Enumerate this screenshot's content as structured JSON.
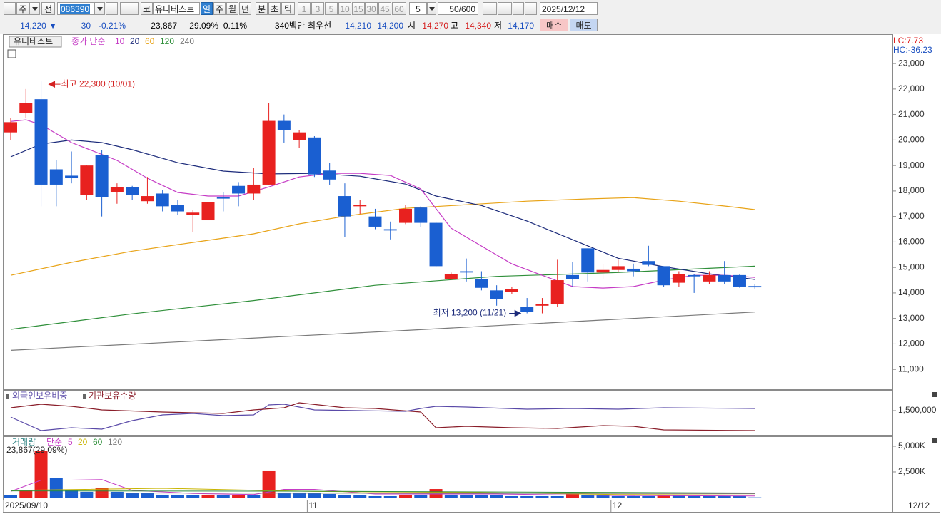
{
  "toolbar": {
    "type_select": "주",
    "all": "전",
    "code": "086390",
    "market": "코",
    "name": "유니테스트",
    "periods": [
      "일",
      "주",
      "월",
      "년",
      "분",
      "초",
      "틱"
    ],
    "intervals": [
      "1",
      "3",
      "5",
      "10",
      "15",
      "30",
      "45",
      "60"
    ],
    "interval_value": "5",
    "count": "50/600",
    "date": "2025/12/12"
  },
  "quote": {
    "price": "14,220 ▼",
    "change": "30",
    "change_rate": "-0.21%",
    "volume": "23,867",
    "volume_ratio": "29.09%",
    "turnover": "0.11%",
    "amount": "340백만",
    "best_label": "최우선",
    "ask": "14,210",
    "bid": "14,200",
    "open_label": "시",
    "open": "14,270",
    "high_label": "고",
    "high": "14,340",
    "low_label": "저",
    "low": "14,170",
    "buy": "매수",
    "sell": "매도"
  },
  "x_axis": {
    "ticks": [
      {
        "value": 0,
        "label": "2025/09/10"
      },
      {
        "value": 20,
        "label": "11"
      },
      {
        "value": 40,
        "label": "12"
      }
    ],
    "end_label": "12/12"
  },
  "chart_data": [
    {
      "type": "candlestick",
      "name": "유니테스트",
      "ma_label": "종가 단순",
      "up_color": "#e8211f",
      "down_color": "#1a5fd1",
      "corner": [
        {
          "text": "LC:7.73",
          "color": "#e02020"
        },
        {
          "text": "HC:-36.23",
          "color": "#1a4fc0"
        }
      ],
      "open": [
        20300,
        21050,
        21600,
        18850,
        18600,
        17850,
        19400,
        17950,
        18150,
        17600,
        17900,
        17450,
        17050,
        16850,
        17750,
        18200,
        17900,
        18250,
        20750,
        20000,
        20100,
        18800,
        17800,
        17400,
        17000,
        16500,
        16750,
        17350,
        16750,
        14550,
        14850,
        14550,
        14100,
        14050,
        13450,
        13500,
        13550,
        14700,
        15750,
        14800,
        14900,
        14950,
        15250,
        15050,
        14400,
        14700,
        14450,
        14700,
        14700,
        14270
      ],
      "high": [
        20850,
        22000,
        22300,
        19200,
        19550,
        19000,
        19600,
        18300,
        18200,
        18550,
        18050,
        17650,
        17250,
        17650,
        17950,
        18350,
        18900,
        21450,
        21000,
        20400,
        20150,
        19100,
        18300,
        17650,
        17300,
        16800,
        17450,
        17400,
        16800,
        14800,
        15350,
        14850,
        14300,
        14250,
        13800,
        13800,
        15300,
        15200,
        15750,
        15150,
        15300,
        15150,
        15850,
        15050,
        14850,
        14750,
        14850,
        15250,
        14750,
        14340
      ],
      "low": [
        20000,
        20850,
        17400,
        17400,
        18300,
        17650,
        17000,
        17500,
        17650,
        17500,
        17200,
        17050,
        16400,
        16550,
        17200,
        17400,
        17650,
        18250,
        19900,
        19700,
        18550,
        18250,
        16200,
        17100,
        16500,
        16100,
        16700,
        16600,
        15000,
        14500,
        14450,
        14100,
        13500,
        13950,
        13200,
        13200,
        13450,
        14250,
        14450,
        14550,
        14800,
        14650,
        15050,
        14250,
        14250,
        14000,
        14350,
        14350,
        14200,
        14170
      ],
      "close": [
        20700,
        21450,
        18250,
        18250,
        18500,
        19000,
        17750,
        18150,
        17850,
        17800,
        17400,
        17200,
        17150,
        17550,
        17700,
        17900,
        18250,
        20750,
        20400,
        20300,
        18650,
        18450,
        17000,
        17450,
        16600,
        16450,
        17300,
        16750,
        15050,
        14750,
        14800,
        14200,
        13750,
        14150,
        13250,
        13550,
        14500,
        14550,
        14800,
        14900,
        15050,
        14850,
        15100,
        14300,
        14750,
        14650,
        14700,
        14450,
        14250,
        14220
      ],
      "moving_averages": [
        {
          "name": "10",
          "color": "#c53bc5",
          "x": [
            0,
            1,
            2,
            4,
            7,
            9,
            11,
            13,
            15,
            17,
            19,
            21,
            23,
            25,
            27,
            29,
            31,
            33,
            35,
            37,
            39,
            41,
            43,
            45,
            47,
            49
          ],
          "values": [
            20730,
            20790,
            20600,
            19900,
            19200,
            18500,
            17940,
            17800,
            17800,
            18160,
            18550,
            18690,
            18690,
            18610,
            18080,
            16540,
            15840,
            15140,
            14690,
            14250,
            14190,
            14250,
            14500,
            14690,
            14690,
            14610
          ]
        },
        {
          "name": "20",
          "color": "#1b2a7a",
          "x": [
            0,
            2,
            4,
            6,
            8,
            11,
            14,
            17,
            20,
            23,
            26,
            28,
            31,
            34,
            37,
            40,
            43,
            46,
            49
          ],
          "values": [
            19340,
            19840,
            20000,
            19900,
            19620,
            19110,
            18780,
            18670,
            18690,
            18580,
            18270,
            17800,
            17430,
            16820,
            16090,
            15360,
            15030,
            14750,
            14530
          ]
        },
        {
          "name": "60",
          "color": "#e8a317",
          "x": [
            0,
            4,
            8,
            12,
            16,
            19,
            22,
            26,
            30,
            34,
            38,
            41,
            44,
            47,
            49
          ],
          "values": [
            14690,
            15200,
            15640,
            15980,
            16320,
            16710,
            17010,
            17320,
            17460,
            17600,
            17690,
            17740,
            17600,
            17410,
            17270
          ]
        },
        {
          "name": "120",
          "color": "#2f8f3a",
          "x": [
            0,
            8,
            16,
            24,
            32,
            40,
            49
          ],
          "values": [
            12570,
            13180,
            13700,
            14300,
            14650,
            14800,
            15050
          ]
        },
        {
          "name": "240",
          "color": "#7a7a7a",
          "x": [
            0,
            25,
            49
          ],
          "values": [
            11750,
            12500,
            13250
          ]
        }
      ],
      "annotations": [
        {
          "text": "최고 22,300 (10/01)",
          "index": 2,
          "value": 22300,
          "color": "#d42020"
        },
        {
          "text": "최저 13,200 (11/21)",
          "index": 34,
          "value": 13200,
          "color": "#1b2a7a"
        }
      ],
      "ylim": [
        10250,
        24150
      ],
      "yticks": [
        {
          "value": 11000,
          "label": "11,000"
        },
        {
          "value": 12000,
          "label": "12,000"
        },
        {
          "value": 13000,
          "label": "13,000"
        },
        {
          "value": 14000,
          "label": "14,000"
        },
        {
          "value": 15000,
          "label": "15,000"
        },
        {
          "value": 16000,
          "label": "16,000"
        },
        {
          "value": 17000,
          "label": "17,000"
        },
        {
          "value": 18000,
          "label": "18,000"
        },
        {
          "value": 19000,
          "label": "19,000"
        },
        {
          "value": 20000,
          "label": "20,000"
        },
        {
          "value": 21000,
          "label": "21,000"
        },
        {
          "value": 22000,
          "label": "22,000"
        },
        {
          "value": 23000,
          "label": "23,000"
        }
      ]
    },
    {
      "type": "line",
      "series": [
        {
          "name": "외국인보유비중",
          "color": "#5a4aa8",
          "x": [
            0,
            2,
            4,
            6,
            8,
            10,
            12,
            14,
            16,
            17,
            18,
            20,
            23,
            26,
            27,
            28,
            30,
            34,
            37,
            40,
            43,
            49
          ],
          "values": [
            1350000,
            1033000,
            1100000,
            1067000,
            1267000,
            1400000,
            1433000,
            1383000,
            1400000,
            1633000,
            1650000,
            1517000,
            1500000,
            1483000,
            1550000,
            1600000,
            1583000,
            1533000,
            1550000,
            1533000,
            1567000,
            1550000
          ]
        },
        {
          "name": "기관보유수량",
          "color": "#8a1e2a",
          "x": [
            0,
            2,
            4,
            6,
            10,
            14,
            16,
            18,
            19,
            22,
            24,
            27,
            28,
            30,
            33,
            36,
            39,
            41,
            43,
            49
          ],
          "values": [
            1567000,
            1650000,
            1600000,
            1517000,
            1467000,
            1433000,
            1517000,
            1567000,
            1683000,
            1567000,
            1550000,
            1467000,
            1100000,
            1133000,
            1100000,
            1083000,
            1150000,
            1133000,
            1050000,
            1033000
          ]
        }
      ],
      "ylim": [
        1000000,
        1900000
      ],
      "yticks": [
        {
          "value": 1500000,
          "label": "1,500,000"
        }
      ]
    },
    {
      "type": "bar",
      "name": "거래량",
      "name_color": "#3a8a8a",
      "ma_label": "단순",
      "up_color": "#e8211f",
      "down_color": "#1a5fd1",
      "current_label": "23,867(29.09%)",
      "values": [
        210000,
        690000,
        4580000,
        1940000,
        690000,
        560000,
        970000,
        560000,
        420000,
        420000,
        280000,
        280000,
        210000,
        280000,
        210000,
        280000,
        280000,
        2640000,
        490000,
        490000,
        420000,
        350000,
        280000,
        210000,
        140000,
        140000,
        210000,
        210000,
        830000,
        280000,
        210000,
        210000,
        210000,
        140000,
        140000,
        140000,
        140000,
        350000,
        210000,
        210000,
        140000,
        140000,
        140000,
        210000,
        210000,
        140000,
        140000,
        140000,
        140000,
        23867
      ],
      "moving_averages": [
        {
          "name": "5",
          "color": "#c53bc5",
          "x": [
            0,
            2,
            4,
            6,
            8,
            12,
            16,
            18,
            20,
            24,
            28,
            32,
            40,
            49
          ],
          "values": [
            600000,
            1700000,
            1700000,
            1750000,
            700000,
            400000,
            300000,
            800000,
            800000,
            350000,
            350000,
            350000,
            200000,
            150000
          ]
        },
        {
          "name": "20",
          "color": "#c8b400",
          "x": [
            0,
            10,
            20,
            30,
            40,
            49
          ],
          "values": [
            700000,
            900000,
            600000,
            500000,
            300000,
            250000
          ]
        },
        {
          "name": "60",
          "color": "#2f8f3a",
          "x": [
            0,
            20,
            40,
            49
          ],
          "values": [
            650000,
            620000,
            500000,
            450000
          ]
        },
        {
          "name": "120",
          "color": "#7a7a7a",
          "x": [
            0,
            25,
            49
          ],
          "values": [
            450000,
            420000,
            380000
          ]
        }
      ],
      "ylim": [
        0,
        5900000
      ],
      "yticks": [
        {
          "value": 2500000,
          "label": "2,500K"
        },
        {
          "value": 5000000,
          "label": "5,000K"
        }
      ]
    }
  ]
}
